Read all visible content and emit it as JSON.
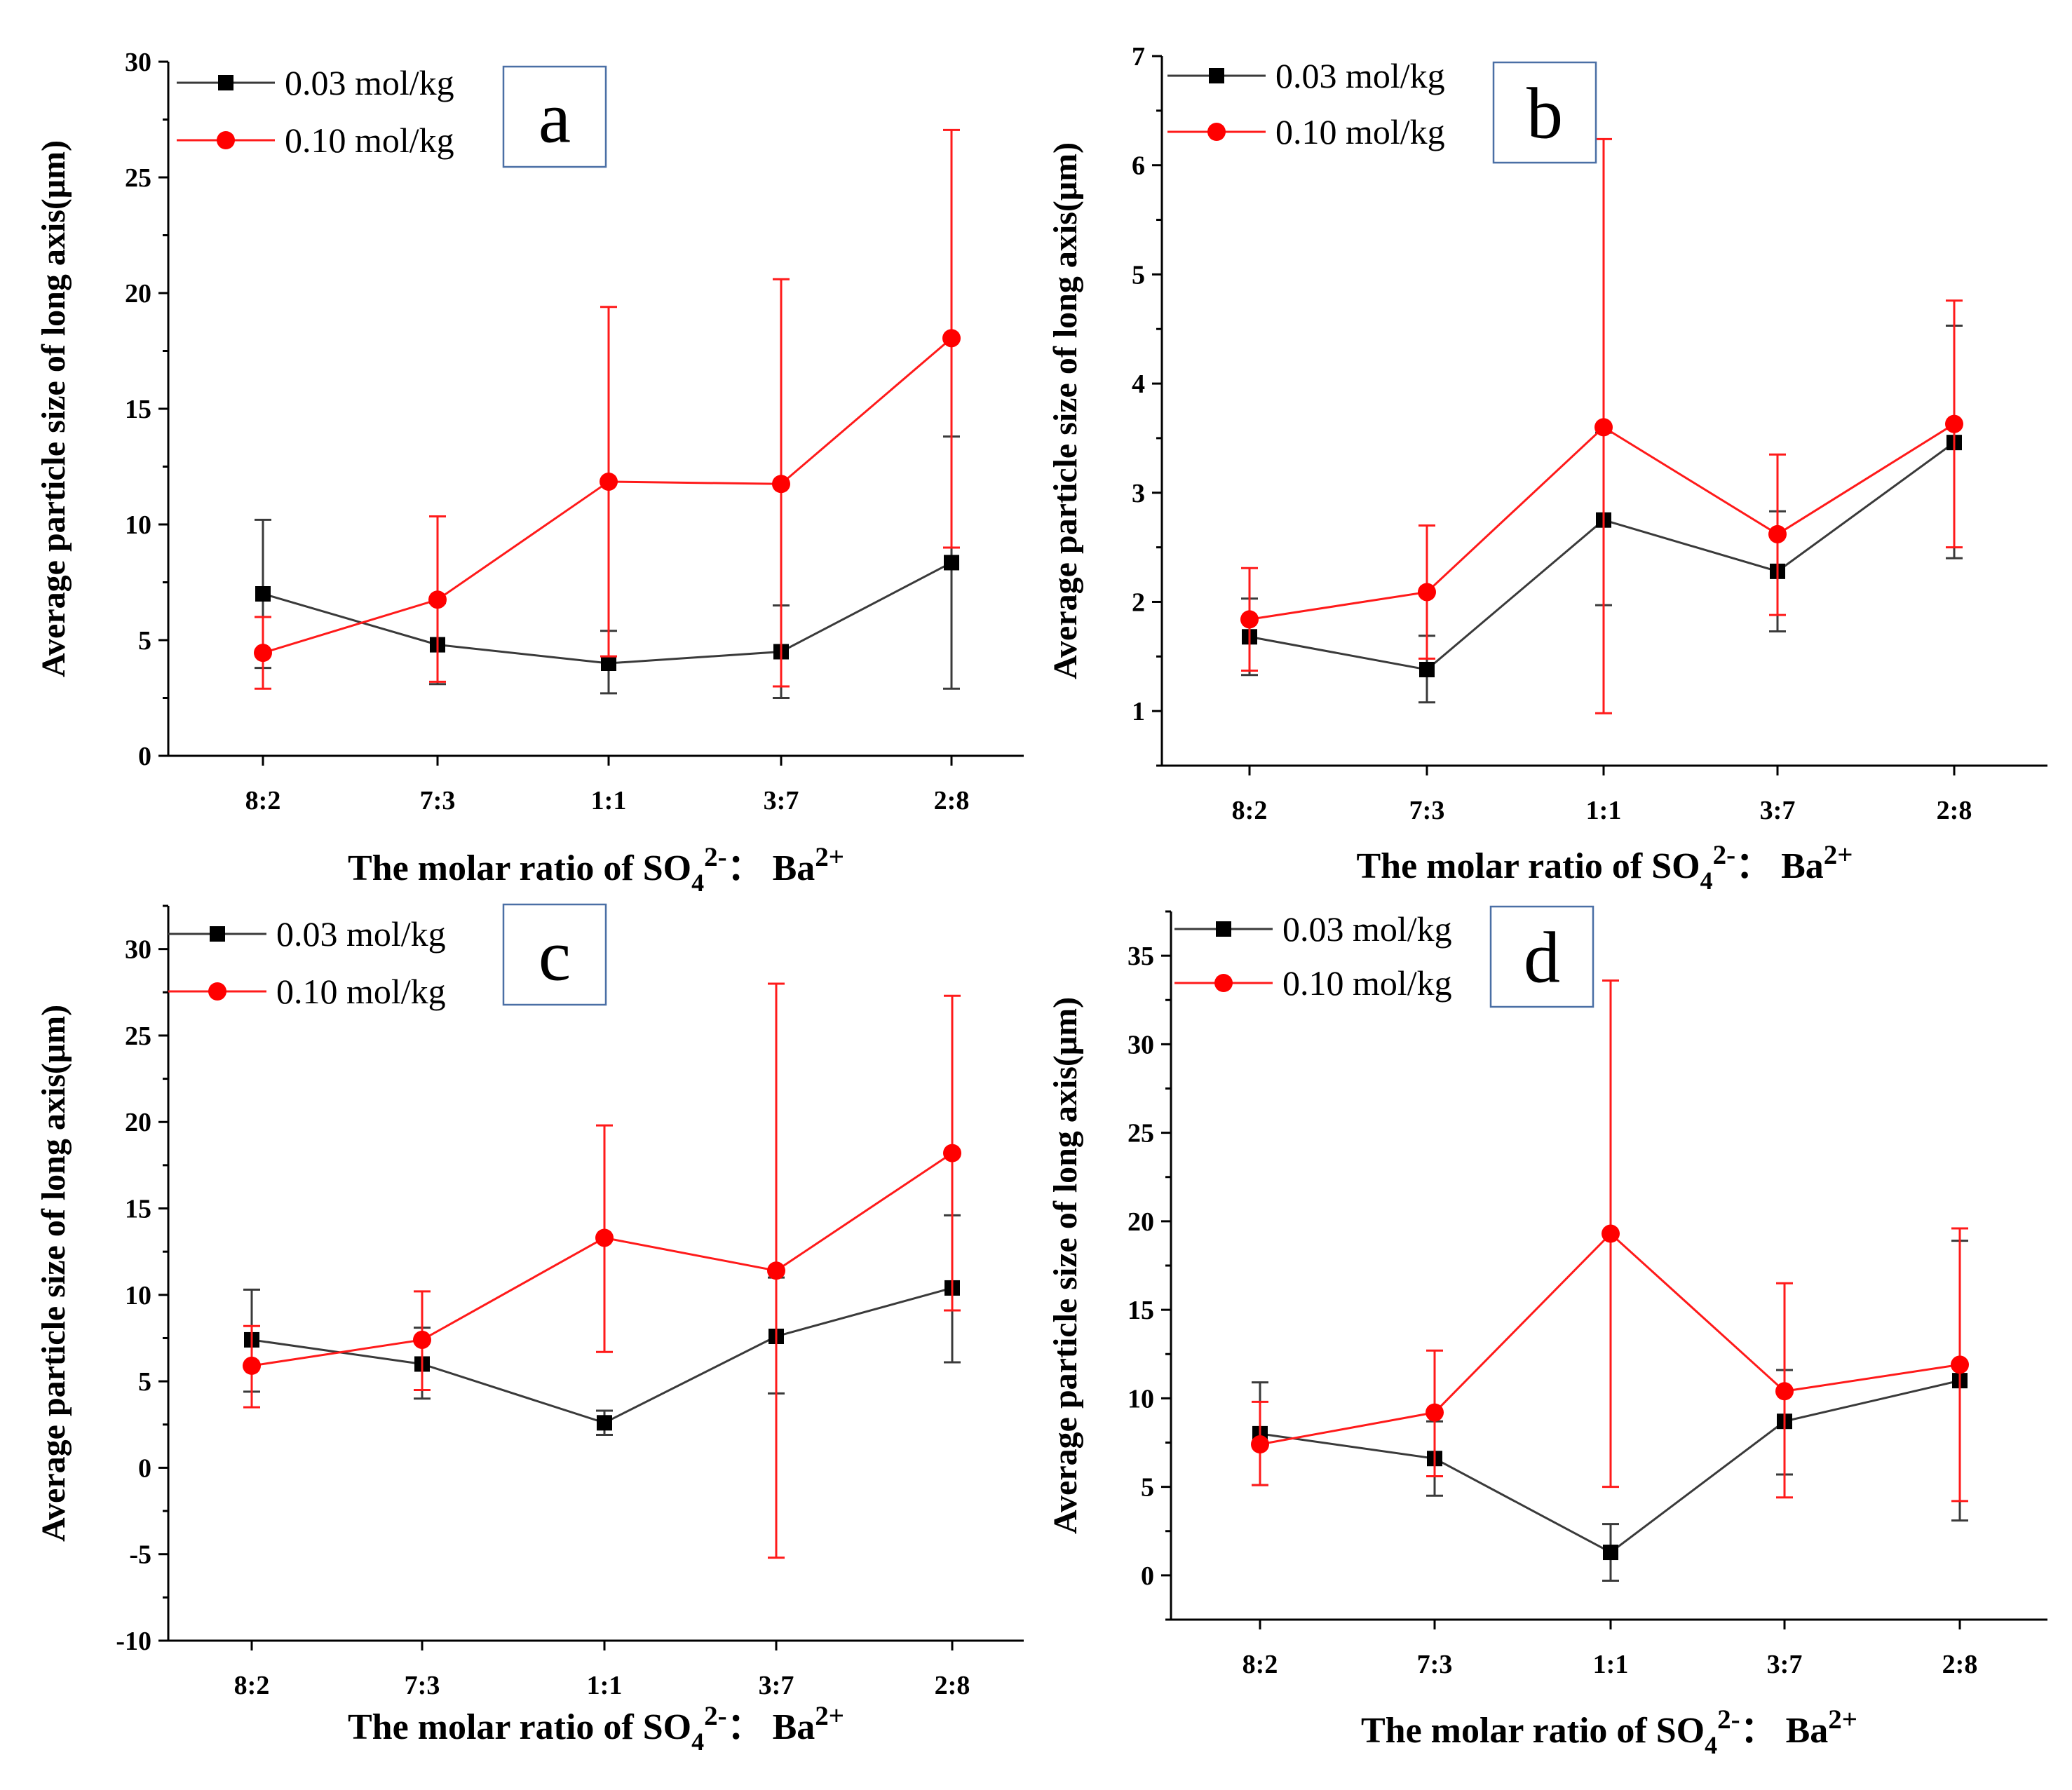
{
  "colors": {
    "series_003": "#3a3a3a",
    "series_010": "#ff1a1a",
    "panel_box": "#4a6fa5",
    "axis": "#000000"
  },
  "chart_data": [
    {
      "type": "line",
      "panel_label": "a",
      "ylabel": "Average particle size of long axis(μm)",
      "xlabel": {
        "main": "The  molar ratio of  SO",
        "sub": "4",
        "sup1": "2-",
        "mid": "： Ba",
        "sup2": "2+"
      },
      "categories": [
        "8:2",
        "7:3",
        "1:1",
        "3:7",
        "2:8"
      ],
      "ylim": [
        0,
        30
      ],
      "yticks": [
        "0",
        "5",
        "10",
        "15",
        "20",
        "25",
        "30"
      ],
      "series": [
        {
          "name": "0.03 mol/kg",
          "marker": "square",
          "values": [
            7.0,
            4.8,
            4.0,
            4.5,
            8.35
          ],
          "err_low": [
            3.8,
            3.1,
            2.7,
            2.5,
            2.9
          ],
          "err_high": [
            10.2,
            6.6,
            5.4,
            6.5,
            13.8
          ]
        },
        {
          "name": "0.10 mol/kg",
          "marker": "circle",
          "values": [
            4.45,
            6.75,
            11.85,
            11.75,
            18.05
          ],
          "err_low": [
            2.9,
            3.2,
            4.3,
            3.0,
            9.0
          ],
          "err_high": [
            6.0,
            10.35,
            19.4,
            20.6,
            27.05
          ]
        }
      ]
    },
    {
      "type": "line",
      "panel_label": "b",
      "ylabel": "Average particle size of long axis(μm)",
      "xlabel": {
        "main": "The  molar ratio of  SO",
        "sub": "4",
        "sup1": "2-",
        "mid": "： Ba",
        "sup2": "2+"
      },
      "categories": [
        "8:2",
        "7:3",
        "1:1",
        "3:7",
        "2:8"
      ],
      "ylim": [
        0.5,
        7
      ],
      "yticks": [
        "1",
        "2",
        "3",
        "4",
        "5",
        "6",
        "7"
      ],
      "series": [
        {
          "name": "0.03 mol/kg",
          "marker": "square",
          "values": [
            1.68,
            1.38,
            2.75,
            2.28,
            3.46
          ],
          "err_low": [
            1.33,
            1.08,
            1.97,
            1.73,
            2.4
          ],
          "err_high": [
            2.03,
            1.69,
            3.55,
            2.83,
            4.53
          ]
        },
        {
          "name": "0.10 mol/kg",
          "marker": "circle",
          "values": [
            1.84,
            2.09,
            3.6,
            2.62,
            3.63
          ],
          "err_low": [
            1.37,
            1.48,
            0.98,
            1.88,
            2.5
          ],
          "err_high": [
            2.31,
            2.7,
            6.24,
            3.35,
            4.76
          ]
        }
      ]
    },
    {
      "type": "line",
      "panel_label": "c",
      "ylabel": "Average particle size of long axis(μm)",
      "xlabel": {
        "main": "The  molar ratio of  SO",
        "sub": "4",
        "sup1": "2-",
        "mid": "： Ba",
        "sup2": "2+"
      },
      "categories": [
        "8:2",
        "7:3",
        "1:1",
        "3:7",
        "2:8"
      ],
      "ylim": [
        -10,
        32.5
      ],
      "yticks": [
        "-10",
        "-5",
        "0",
        "5",
        "10",
        "15",
        "20",
        "25",
        "30"
      ],
      "series": [
        {
          "name": "0.03 mol/kg",
          "marker": "square",
          "values": [
            7.4,
            6.0,
            2.6,
            7.6,
            10.4
          ],
          "err_low": [
            4.4,
            4.0,
            1.9,
            4.3,
            6.1
          ],
          "err_high": [
            10.3,
            8.1,
            3.3,
            11.0,
            14.6
          ]
        },
        {
          "name": "0.10 mol/kg",
          "marker": "circle",
          "values": [
            5.9,
            7.4,
            13.3,
            11.4,
            18.2
          ],
          "err_low": [
            3.5,
            4.5,
            6.7,
            -5.2,
            9.1
          ],
          "err_high": [
            8.2,
            10.2,
            19.8,
            28.0,
            27.3
          ]
        }
      ]
    },
    {
      "type": "line",
      "panel_label": "d",
      "ylabel": "Average particle size of long axis(μm)",
      "xlabel": {
        "main": "The  molar ratio of  SO",
        "sub": "4",
        "sup1": "2-",
        "mid": "： Ba",
        "sup2": "2+"
      },
      "categories": [
        "8:2",
        "7:3",
        "1:1",
        "3:7",
        "2:8"
      ],
      "ylim": [
        -2.5,
        37.5
      ],
      "yticks": [
        "0",
        "5",
        "10",
        "15",
        "20",
        "25",
        "30",
        "35"
      ],
      "series": [
        {
          "name": "0.03 mol/kg",
          "marker": "square",
          "values": [
            8.0,
            6.6,
            1.3,
            8.7,
            11.0
          ],
          "err_low": [
            5.1,
            4.5,
            -0.3,
            5.7,
            3.1
          ],
          "err_high": [
            10.9,
            8.7,
            2.9,
            11.6,
            18.9
          ]
        },
        {
          "name": "0.10 mol/kg",
          "marker": "circle",
          "values": [
            7.4,
            9.2,
            19.3,
            10.4,
            11.9
          ],
          "err_low": [
            5.1,
            5.6,
            5.0,
            4.4,
            4.2
          ],
          "err_high": [
            9.8,
            12.7,
            33.6,
            16.5,
            19.6
          ]
        }
      ]
    }
  ]
}
